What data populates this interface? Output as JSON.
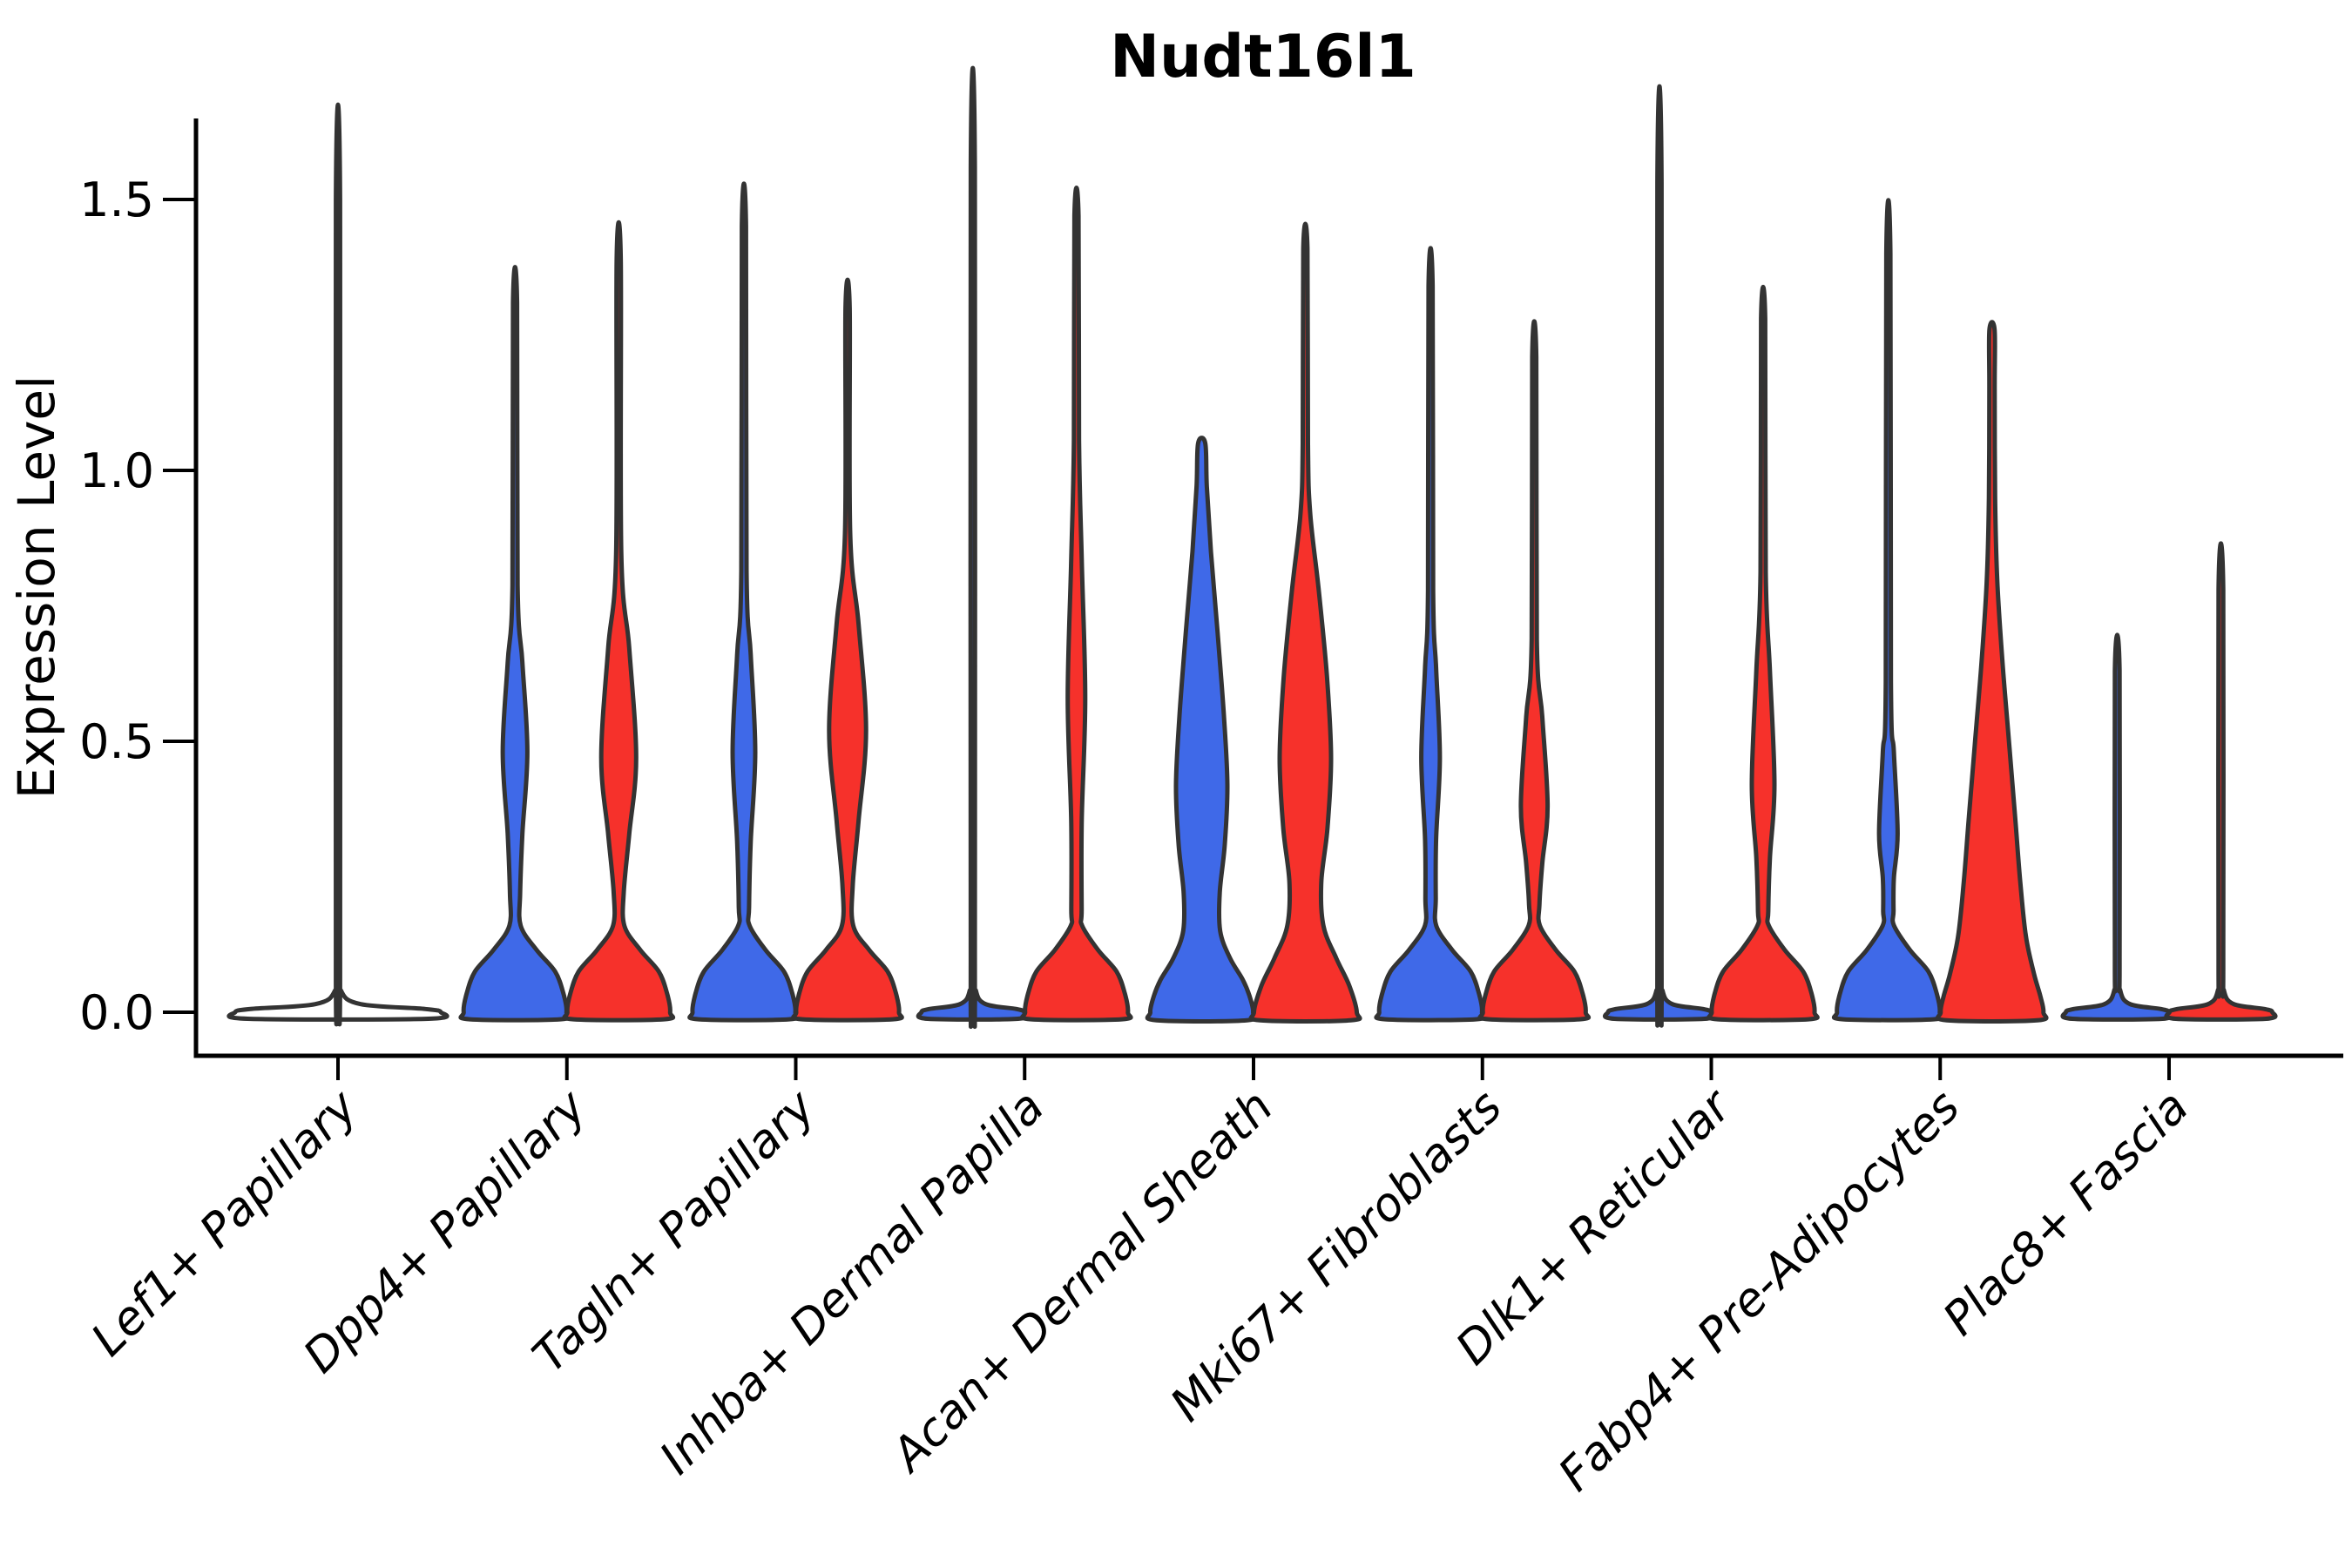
{
  "page": {
    "background": "#ffffff"
  },
  "chart_data": {
    "type": "violin",
    "title": "Nudt16l1",
    "ylabel": "Expression Level",
    "xlabel": "",
    "legend_position": "none",
    "grid": false,
    "ylim": [
      -0.05,
      1.65
    ],
    "yticks": [
      {
        "value": 0.0,
        "label": "0.0"
      },
      {
        "value": 0.5,
        "label": "0.5"
      },
      {
        "value": 1.0,
        "label": "1.0"
      },
      {
        "value": 1.5,
        "label": "1.5"
      }
    ],
    "colors": {
      "blue": "#3F69E8",
      "red": "#F6312B",
      "outline": "#333333",
      "axis": "#000000",
      "text": "#000000"
    },
    "categories": [
      {
        "label": "Lef1+ Papillary",
        "violins": [
          {
            "side": "center",
            "fill": "none",
            "max": 1.5,
            "width_scale": 2.0,
            "profile": [
              [
                1.5,
                0.02
              ],
              [
                0.1,
                0.02
              ],
              [
                0.04,
                0.03
              ],
              [
                0.015,
                0.22
              ],
              [
                0.006,
                0.85
              ],
              [
                0.0,
                1.0
              ],
              [
                -0.012,
                0.88
              ]
            ]
          }
        ]
      },
      {
        "label": "Dpp4+ Papillary",
        "violins": [
          {
            "side": "left",
            "fill": "blue",
            "max": 1.31,
            "bulge_center": 0.48,
            "profile": [
              [
                1.31,
                0.04
              ],
              [
                0.788,
                0.05
              ],
              [
                0.645,
                0.144
              ],
              [
                0.48,
                0.24
              ],
              [
                0.33,
                0.144
              ],
              [
                0.22,
                0.1
              ],
              [
                0.16,
                0.11
              ],
              [
                0.115,
                0.42
              ],
              [
                0.075,
                0.78
              ],
              [
                0.035,
                0.94
              ],
              [
                0.0,
                1.0
              ],
              [
                -0.013,
                0.88
              ]
            ]
          },
          {
            "side": "right",
            "fill": "red",
            "max": 1.39,
            "bulge_center": 0.47,
            "profile": [
              [
                1.39,
                0.04
              ],
              [
                0.848,
                0.05
              ],
              [
                0.673,
                0.204
              ],
              [
                0.47,
                0.34
              ],
              [
                0.328,
                0.204
              ],
              [
                0.223,
                0.1
              ],
              [
                0.16,
                0.11
              ],
              [
                0.115,
                0.42
              ],
              [
                0.075,
                0.78
              ],
              [
                0.035,
                0.94
              ],
              [
                0.0,
                1.0
              ],
              [
                -0.013,
                0.88
              ]
            ]
          }
        ]
      },
      {
        "label": "Tagln+ Papillary",
        "violins": [
          {
            "side": "left",
            "fill": "blue",
            "max": 1.45,
            "bulge_center": 0.48,
            "profile": [
              [
                1.45,
                0.04
              ],
              [
                0.816,
                0.05
              ],
              [
                0.66,
                0.132
              ],
              [
                0.48,
                0.22
              ],
              [
                0.315,
                0.132
              ],
              [
                0.194,
                0.1
              ],
              [
                0.16,
                0.11
              ],
              [
                0.115,
                0.42
              ],
              [
                0.075,
                0.78
              ],
              [
                0.035,
                0.94
              ],
              [
                0.0,
                1.0
              ],
              [
                -0.013,
                0.88
              ]
            ]
          },
          {
            "side": "right",
            "fill": "red",
            "max": 1.3,
            "bulge_center": 0.52,
            "profile": [
              [
                1.3,
                0.04
              ],
              [
                0.884,
                0.05
              ],
              [
                0.715,
                0.216
              ],
              [
                0.52,
                0.36
              ],
              [
                0.355,
                0.216
              ],
              [
                0.234,
                0.1
              ],
              [
                0.16,
                0.11
              ],
              [
                0.115,
                0.42
              ],
              [
                0.075,
                0.78
              ],
              [
                0.035,
                0.94
              ],
              [
                0.0,
                1.0
              ],
              [
                -0.013,
                0.88
              ]
            ]
          }
        ]
      },
      {
        "label": "Inhba+ Dermal Papilla",
        "violins": [
          {
            "side": "left",
            "fill": "blue",
            "max": 1.56,
            "profile": [
              [
                1.56,
                0.04
              ],
              [
                0.1,
                0.04
              ],
              [
                0.04,
                0.06
              ],
              [
                0.015,
                0.25
              ],
              [
                0.006,
                0.85
              ],
              [
                0.0,
                1.0
              ],
              [
                -0.012,
                0.88
              ]
            ]
          },
          {
            "side": "right",
            "fill": "red",
            "max": 1.47,
            "bulge_center": 0.58,
            "profile": [
              [
                1.47,
                0.04
              ],
              [
                1.056,
                0.05
              ],
              [
                0.835,
                0.102
              ],
              [
                0.58,
                0.17
              ],
              [
                0.355,
                0.102
              ],
              [
                0.19,
                0.1
              ],
              [
                0.16,
                0.11
              ],
              [
                0.115,
                0.42
              ],
              [
                0.075,
                0.78
              ],
              [
                0.035,
                0.94
              ],
              [
                0.0,
                1.0
              ],
              [
                -0.013,
                0.88
              ]
            ]
          }
        ]
      },
      {
        "label": "Acan+ Dermal Sheath",
        "violins": [
          {
            "side": "left",
            "fill": "blue",
            "max": 1.05,
            "bulge_center": 0.42,
            "profile": [
              [
                1.05,
                0.07
              ],
              [
                0.97,
                0.1
              ],
              [
                0.85,
                0.18
              ],
              [
                0.7,
                0.31
              ],
              [
                0.55,
                0.43
              ],
              [
                0.42,
                0.5
              ],
              [
                0.31,
                0.45
              ],
              [
                0.22,
                0.35
              ],
              [
                0.15,
                0.36
              ],
              [
                0.1,
                0.55
              ],
              [
                0.06,
                0.8
              ],
              [
                0.03,
                0.93
              ],
              [
                0.0,
                1.0
              ],
              [
                -0.015,
                0.88
              ]
            ]
          },
          {
            "side": "right",
            "fill": "red",
            "max": 1.41,
            "bulge_center": 0.47,
            "profile": [
              [
                1.41,
                0.04
              ],
              [
                1.05,
                0.05
              ],
              [
                0.92,
                0.095
              ],
              [
                0.78,
                0.26
              ],
              [
                0.62,
                0.42
              ],
              [
                0.47,
                0.5
              ],
              [
                0.34,
                0.43
              ],
              [
                0.24,
                0.31
              ],
              [
                0.16,
                0.35
              ],
              [
                0.1,
                0.6
              ],
              [
                0.05,
                0.85
              ],
              [
                0.0,
                1.0
              ],
              [
                -0.015,
                0.88
              ]
            ]
          }
        ]
      },
      {
        "label": "Mki67+ Fibroblasts",
        "violins": [
          {
            "side": "left",
            "fill": "blue",
            "max": 1.34,
            "bulge_center": 0.47,
            "profile": [
              [
                1.34,
                0.04
              ],
              [
                0.778,
                0.05
              ],
              [
                0.635,
                0.108
              ],
              [
                0.47,
                0.18
              ],
              [
                0.32,
                0.108
              ],
              [
                0.21,
                0.1
              ],
              [
                0.16,
                0.11
              ],
              [
                0.115,
                0.42
              ],
              [
                0.075,
                0.78
              ],
              [
                0.035,
                0.94
              ],
              [
                0.0,
                1.0
              ],
              [
                -0.013,
                0.88
              ]
            ]
          },
          {
            "side": "right",
            "fill": "red",
            "max": 1.21,
            "bulge_center": 0.38,
            "profile": [
              [
                1.21,
                0.04
              ],
              [
                0.688,
                0.05
              ],
              [
                0.545,
                0.156
              ],
              [
                0.38,
                0.26
              ],
              [
                0.275,
                0.156
              ],
              [
                0.198,
                0.1
              ],
              [
                0.16,
                0.11
              ],
              [
                0.115,
                0.42
              ],
              [
                0.075,
                0.78
              ],
              [
                0.035,
                0.94
              ],
              [
                0.0,
                1.0
              ],
              [
                -0.013,
                0.88
              ]
            ]
          }
        ]
      },
      {
        "label": "Dlk1+ Reticular",
        "violins": [
          {
            "side": "left",
            "fill": "blue",
            "max": 1.53,
            "profile": [
              [
                1.53,
                0.04
              ],
              [
                0.1,
                0.04
              ],
              [
                0.04,
                0.06
              ],
              [
                0.015,
                0.25
              ],
              [
                0.006,
                0.85
              ],
              [
                0.0,
                1.0
              ],
              [
                -0.012,
                0.88
              ]
            ]
          },
          {
            "side": "right",
            "fill": "red",
            "max": 1.28,
            "bulge_center": 0.42,
            "profile": [
              [
                1.28,
                0.04
              ],
              [
                0.812,
                0.05
              ],
              [
                0.63,
                0.132
              ],
              [
                0.42,
                0.22
              ],
              [
                0.285,
                0.132
              ],
              [
                0.186,
                0.1
              ],
              [
                0.16,
                0.11
              ],
              [
                0.115,
                0.42
              ],
              [
                0.075,
                0.78
              ],
              [
                0.035,
                0.94
              ],
              [
                0.0,
                1.0
              ],
              [
                -0.013,
                0.88
              ]
            ]
          }
        ]
      },
      {
        "label": "Fabp4+ Pre-Adipocytes",
        "violins": [
          {
            "side": "left",
            "fill": "blue",
            "max": 1.4,
            "bulge_center": 0.33,
            "profile": [
              [
                1.4,
                0.04
              ],
              [
                0.61,
                0.05
              ],
              [
                0.48,
                0.108
              ],
              [
                0.33,
                0.18
              ],
              [
                0.248,
                0.108
              ],
              [
                0.187,
                0.1
              ],
              [
                0.16,
                0.11
              ],
              [
                0.115,
                0.42
              ],
              [
                0.075,
                0.78
              ],
              [
                0.035,
                0.94
              ],
              [
                0.0,
                1.0
              ],
              [
                -0.013,
                0.88
              ]
            ]
          },
          {
            "side": "right",
            "fill": "red",
            "max": 1.26,
            "bulge_center": 0.24,
            "profile": [
              [
                1.26,
                0.05
              ],
              [
                1.15,
                0.052
              ],
              [
                0.95,
                0.06
              ],
              [
                0.8,
                0.1
              ],
              [
                0.65,
                0.2
              ],
              [
                0.5,
                0.33
              ],
              [
                0.36,
                0.45
              ],
              [
                0.24,
                0.55
              ],
              [
                0.14,
                0.66
              ],
              [
                0.07,
                0.82
              ],
              [
                0.03,
                0.94
              ],
              [
                0.0,
                1.0
              ],
              [
                -0.015,
                0.88
              ]
            ]
          }
        ]
      },
      {
        "label": "Plac8+ Fascia",
        "violins": [
          {
            "side": "left",
            "fill": "blue",
            "max": 0.63,
            "profile": [
              [
                0.63,
                0.045
              ],
              [
                0.1,
                0.045
              ],
              [
                0.04,
                0.06
              ],
              [
                0.015,
                0.25
              ],
              [
                0.006,
                0.85
              ],
              [
                0.0,
                1.0
              ],
              [
                -0.012,
                0.88
              ]
            ]
          },
          {
            "side": "right",
            "fill": "red",
            "max": 0.78,
            "profile": [
              [
                0.78,
                0.045
              ],
              [
                0.1,
                0.045
              ],
              [
                0.04,
                0.06
              ],
              [
                0.015,
                0.25
              ],
              [
                0.006,
                0.85
              ],
              [
                0.0,
                1.0
              ],
              [
                -0.012,
                0.88
              ]
            ]
          }
        ]
      }
    ]
  }
}
